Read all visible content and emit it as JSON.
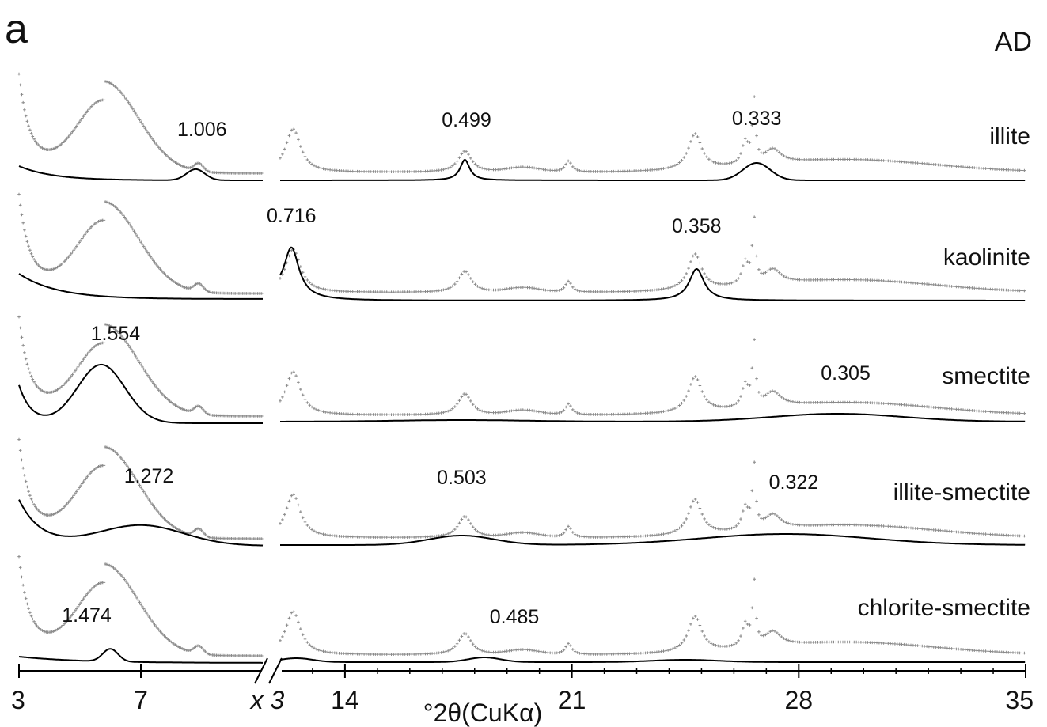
{
  "chart_data": {
    "type": "line",
    "panel_label": "a",
    "treatment_label": "AD",
    "xlabel": "°2θ(CuKα)",
    "x_ticks": [
      "3",
      "7",
      "14",
      "21",
      "28",
      "35"
    ],
    "x_tick_values": [
      3,
      7,
      14,
      21,
      28,
      35
    ],
    "axis_break_label": "x 3",
    "axis_break_after": 11,
    "axis_break_before": 12,
    "series": [
      {
        "name": "illite",
        "measured": {
          "low_max": 5.8,
          "high_peaks": [
            [
              12.4,
              0.55
            ],
            [
              17.7,
              0.27
            ],
            [
              20.9,
              0.18
            ],
            [
              24.8,
              0.45
            ],
            [
              26.6,
              0.8
            ],
            [
              26.4,
              0.3
            ],
            [
              27.2,
              0.2
            ]
          ]
        },
        "modeled_peaks": [
          {
            "label": "1.006",
            "x": 8.8
          },
          {
            "label": "0.499",
            "x": 17.7
          },
          {
            "label": "0.333",
            "x": 26.7
          }
        ]
      },
      {
        "name": "kaolinite",
        "measured": {
          "low_max": 5.8,
          "high_peaks": [
            [
              12.4,
              0.55
            ],
            [
              17.7,
              0.27
            ],
            [
              20.9,
              0.18
            ],
            [
              24.8,
              0.45
            ],
            [
              26.6,
              0.8
            ],
            [
              26.4,
              0.3
            ],
            [
              27.2,
              0.2
            ]
          ]
        },
        "modeled_peaks": [
          {
            "label": "0.716",
            "x": 12.35
          },
          {
            "label": "0.358",
            "x": 24.85
          }
        ]
      },
      {
        "name": "smectite",
        "measured": {
          "low_max": 5.8,
          "high_peaks": [
            [
              12.4,
              0.55
            ],
            [
              17.7,
              0.27
            ],
            [
              20.9,
              0.18
            ],
            [
              24.8,
              0.45
            ],
            [
              26.6,
              0.8
            ],
            [
              26.4,
              0.3
            ],
            [
              27.2,
              0.2
            ]
          ]
        },
        "modeled_peaks": [
          {
            "label": "1.554",
            "x": 5.7
          },
          {
            "label": "0.305",
            "x": 29.2
          }
        ]
      },
      {
        "name": "illite-smectite",
        "measured": {
          "low_max": 5.8,
          "high_peaks": [
            [
              12.4,
              0.55
            ],
            [
              17.7,
              0.27
            ],
            [
              20.9,
              0.18
            ],
            [
              24.8,
              0.45
            ],
            [
              26.6,
              0.8
            ],
            [
              26.4,
              0.3
            ],
            [
              27.2,
              0.2
            ]
          ]
        },
        "modeled_peaks": [
          {
            "label": "1.272",
            "x": 7.0
          },
          {
            "label": "0.503",
            "x": 17.6
          },
          {
            "label": "0.322",
            "x": 27.6
          }
        ]
      },
      {
        "name": "chlorite-smectite",
        "measured": {
          "low_max": 5.8,
          "high_peaks": [
            [
              12.4,
              0.55
            ],
            [
              17.7,
              0.27
            ],
            [
              20.9,
              0.18
            ],
            [
              24.8,
              0.45
            ],
            [
              26.6,
              0.8
            ],
            [
              26.4,
              0.3
            ],
            [
              27.2,
              0.2
            ]
          ]
        },
        "modeled_peaks": [
          {
            "label": "1.474",
            "x": 6.0
          },
          {
            "label": "0.485",
            "x": 18.3
          }
        ]
      }
    ],
    "colors": {
      "measured": "#8a8a8a",
      "modeled": "#000000",
      "text": "#111111"
    },
    "grid": false
  }
}
